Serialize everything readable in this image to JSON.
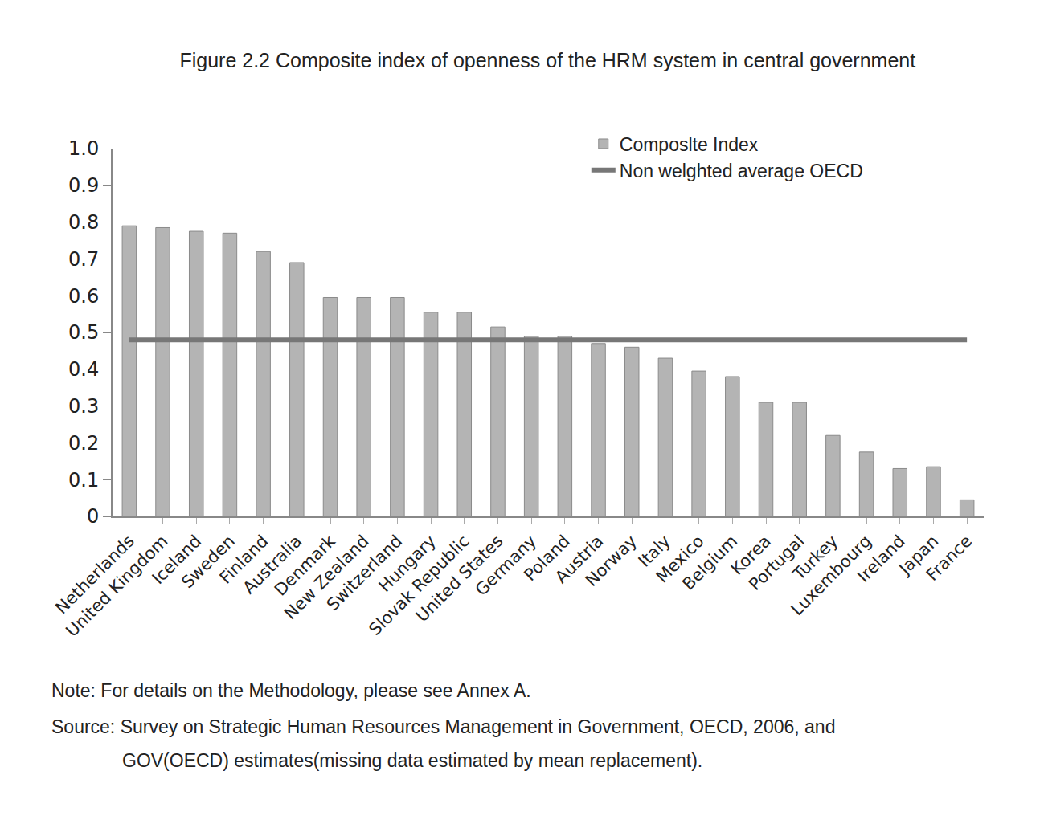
{
  "chart_data": {
    "type": "bar",
    "title": "Figure 2.2 Composite index of openness of the HRM system in central government",
    "categories": [
      "Netherlands",
      "United Kingdom",
      "Iceland",
      "Sweden",
      "Finland",
      "Australia",
      "Denmark",
      "New Zealand",
      "Switzerland",
      "Hungary",
      "Slovak Republic",
      "United States",
      "Germany",
      "Poland",
      "Austria",
      "Norway",
      "Italy",
      "Mexico",
      "Belgium",
      "Korea",
      "Portugal",
      "Turkey",
      "Luxembourg",
      "Ireland",
      "Japan",
      "France"
    ],
    "series": [
      {
        "name": "Composlte Index",
        "type": "bar",
        "color": "#b4b4b4",
        "values": [
          0.79,
          0.785,
          0.775,
          0.77,
          0.72,
          0.69,
          0.595,
          0.595,
          0.595,
          0.555,
          0.555,
          0.515,
          0.49,
          0.49,
          0.47,
          0.46,
          0.43,
          0.395,
          0.38,
          0.31,
          0.31,
          0.22,
          0.175,
          0.13,
          0.135,
          0.045
        ]
      },
      {
        "name": "Non welghted average OECD",
        "type": "line",
        "color": "#777777",
        "values": [
          0.48,
          0.48,
          0.48,
          0.48,
          0.48,
          0.48,
          0.48,
          0.48,
          0.48,
          0.48,
          0.48,
          0.48,
          0.48,
          0.48,
          0.48,
          0.48,
          0.48,
          0.48,
          0.48,
          0.48,
          0.48,
          0.48,
          0.48,
          0.48,
          0.48,
          0.48
        ]
      }
    ],
    "ylim": [
      0,
      1
    ],
    "yticks": [
      0,
      0.1,
      0.2,
      0.3,
      0.4,
      0.5,
      0.6,
      0.7,
      0.8,
      0.9,
      {
        "value": 1,
        "label": "1.0"
      }
    ],
    "grid": false,
    "legend": "top right",
    "annotations": [
      "Note: For details on the Methodology, please see Annex A.",
      "Source: Survey on Strategic Human Resources Management in Government, OECD, 2006, and",
      "GOV(OECD) estimates(missing data estimated by mean replacement)."
    ]
  }
}
